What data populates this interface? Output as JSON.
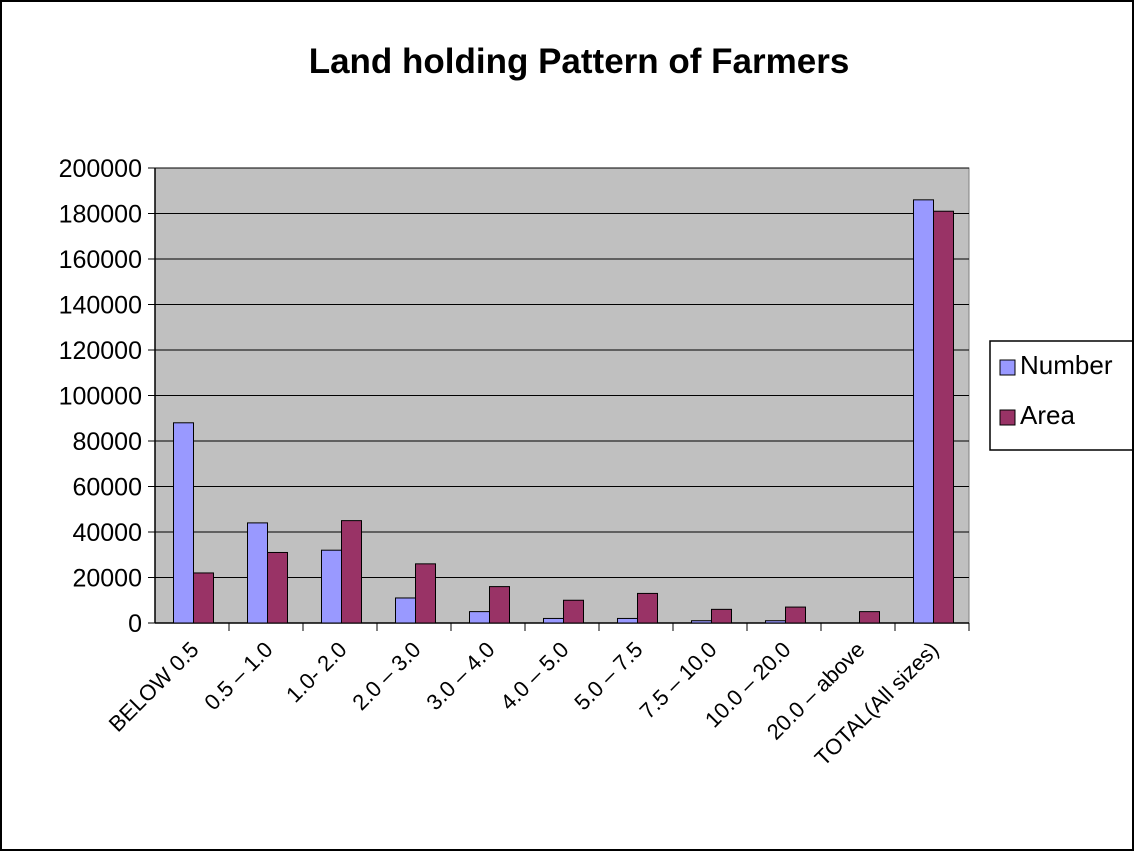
{
  "chart_data": {
    "type": "bar",
    "title": "Land holding Pattern of Farmers",
    "xlabel": "",
    "ylabel": "",
    "categories": [
      "BELOW 0.5",
      "0.5 – 1.0",
      "1.0- 2.0",
      "2.0 – 3.0",
      "3.0 – 4.0",
      "4.0 – 5.0",
      "5.0 – 7.5",
      "7.5 – 10.0",
      "10.0 – 20.0",
      "20.0 – above",
      "TOTAL(All sizes)"
    ],
    "series": [
      {
        "name": "Number",
        "color": "#9999ff",
        "values": [
          88000,
          44000,
          32000,
          11000,
          5000,
          2000,
          2000,
          1000,
          1000,
          0,
          186000
        ]
      },
      {
        "name": "Area",
        "color": "#993366",
        "values": [
          22000,
          31000,
          45000,
          26000,
          16000,
          10000,
          13000,
          6000,
          7000,
          5000,
          181000
        ]
      }
    ],
    "ylim": [
      0,
      200000
    ],
    "yticks": [
      0,
      20000,
      40000,
      60000,
      80000,
      100000,
      120000,
      140000,
      160000,
      180000,
      200000
    ],
    "grid": true,
    "plot_background": "#c0c0c0",
    "legend_position": "right"
  }
}
